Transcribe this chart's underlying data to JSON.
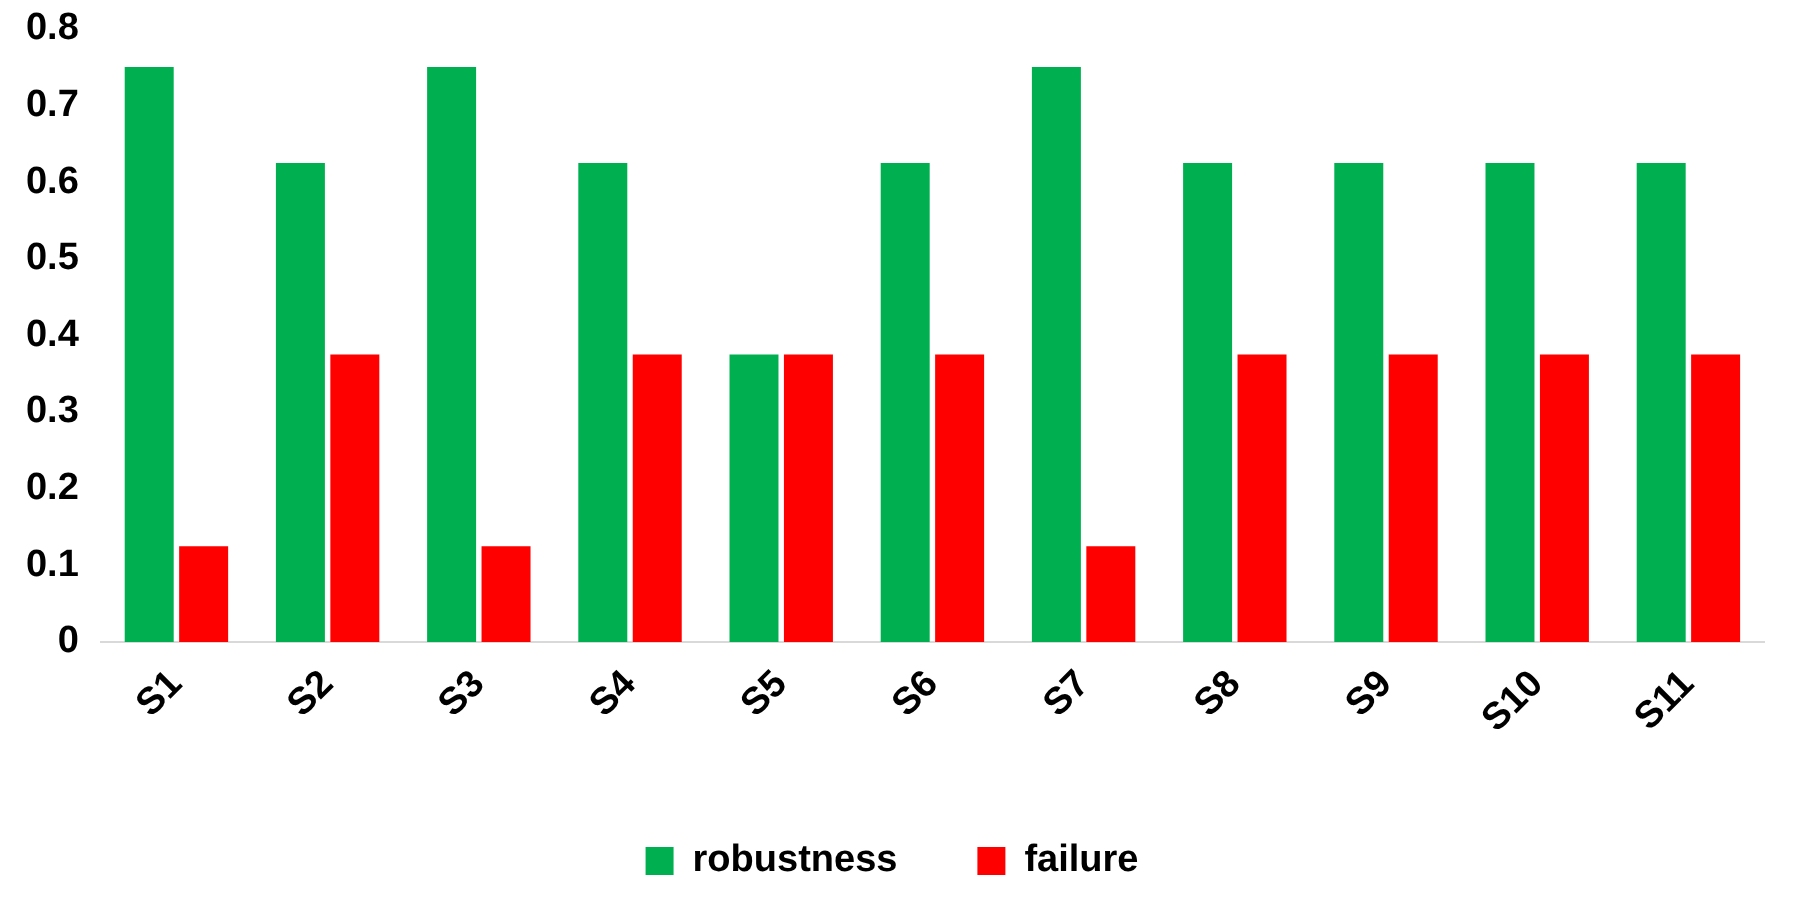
{
  "chart_data": {
    "type": "bar",
    "categories": [
      "S1",
      "S2",
      "S3",
      "S4",
      "S5",
      "S6",
      "S7",
      "S8",
      "S9",
      "S10",
      "S11"
    ],
    "series": [
      {
        "name": "robustness",
        "color": "#00b050",
        "values": [
          0.75,
          0.625,
          0.75,
          0.625,
          0.375,
          0.625,
          0.75,
          0.625,
          0.625,
          0.625,
          0.625
        ]
      },
      {
        "name": "failure",
        "color": "#ff0000",
        "values": [
          0.125,
          0.375,
          0.125,
          0.375,
          0.375,
          0.375,
          0.125,
          0.375,
          0.375,
          0.375,
          0.375
        ]
      }
    ],
    "ylim": [
      0,
      0.8
    ],
    "yticks": [
      0,
      0.1,
      0.2,
      0.3,
      0.4,
      0.5,
      0.6,
      0.7,
      0.8
    ],
    "grid": false,
    "legend": "bottom"
  }
}
